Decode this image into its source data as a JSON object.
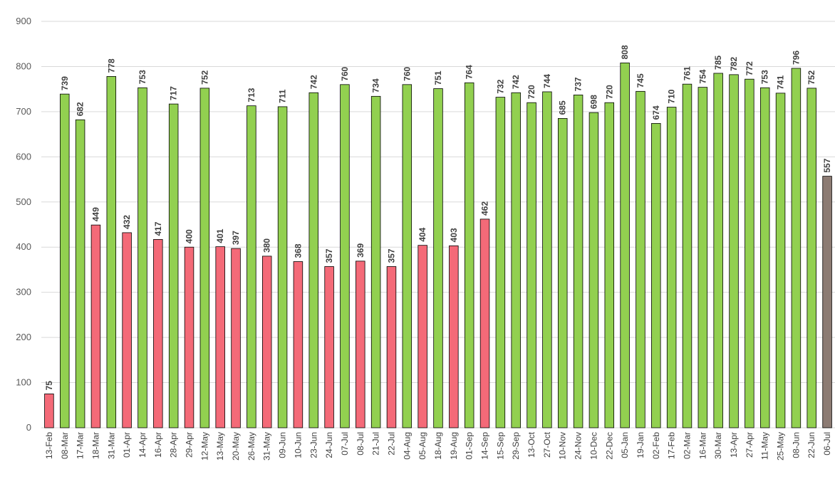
{
  "chart_data": {
    "type": "bar",
    "title": "",
    "xlabel": "",
    "ylabel": "",
    "ylim": [
      0,
      900
    ],
    "yticks": [
      0,
      100,
      200,
      300,
      400,
      500,
      600,
      700,
      800,
      900
    ],
    "grid": true,
    "legend": "none",
    "colors": {
      "high": "#92d050",
      "low": "#f46a78",
      "current": "#8c7b73",
      "gridline": "#d9d9d9"
    },
    "categories": [
      "13-Feb",
      "08-Mar",
      "17-Mar",
      "18-Mar",
      "31-Mar",
      "01-Apr",
      "14-Apr",
      "16-Apr",
      "28-Apr",
      "29-Apr",
      "12-May",
      "13-May",
      "20-May",
      "26-May",
      "31-May",
      "09-Jun",
      "10-Jun",
      "23-Jun",
      "24-Jun",
      "07-Jul",
      "08-Jul",
      "21-Jul",
      "22-Jul",
      "04-Aug",
      "05-Aug",
      "18-Aug",
      "19-Aug",
      "01-Sep",
      "14-Sep",
      "15-Sep",
      "29-Sep",
      "13-Oct",
      "27-Oct",
      "10-Nov",
      "24-Nov",
      "10-Dec",
      "22-Dec",
      "05-Jan",
      "19-Jan",
      "02-Feb",
      "17-Feb",
      "02-Mar",
      "16-Mar",
      "30-Mar",
      "13-Apr",
      "27-Apr",
      "11-May",
      "25-May",
      "08-Jun",
      "22-Jun",
      "06-Jul"
    ],
    "values": [
      75,
      739,
      682,
      449,
      778,
      432,
      753,
      417,
      717,
      400,
      752,
      401,
      397,
      713,
      380,
      711,
      368,
      742,
      357,
      760,
      369,
      734,
      357,
      760,
      404,
      751,
      403,
      764,
      462,
      732,
      742,
      720,
      744,
      685,
      737,
      698,
      720,
      808,
      745,
      674,
      710,
      761,
      754,
      785,
      782,
      772,
      753,
      741,
      796,
      752,
      557
    ],
    "bar_colors": [
      "low",
      "high",
      "high",
      "low",
      "high",
      "low",
      "high",
      "low",
      "high",
      "low",
      "high",
      "low",
      "low",
      "high",
      "low",
      "high",
      "low",
      "high",
      "low",
      "high",
      "low",
      "high",
      "low",
      "high",
      "low",
      "high",
      "low",
      "high",
      "low",
      "high",
      "high",
      "high",
      "high",
      "high",
      "high",
      "high",
      "high",
      "high",
      "high",
      "high",
      "high",
      "high",
      "high",
      "high",
      "high",
      "high",
      "high",
      "high",
      "high",
      "high",
      "current"
    ]
  }
}
